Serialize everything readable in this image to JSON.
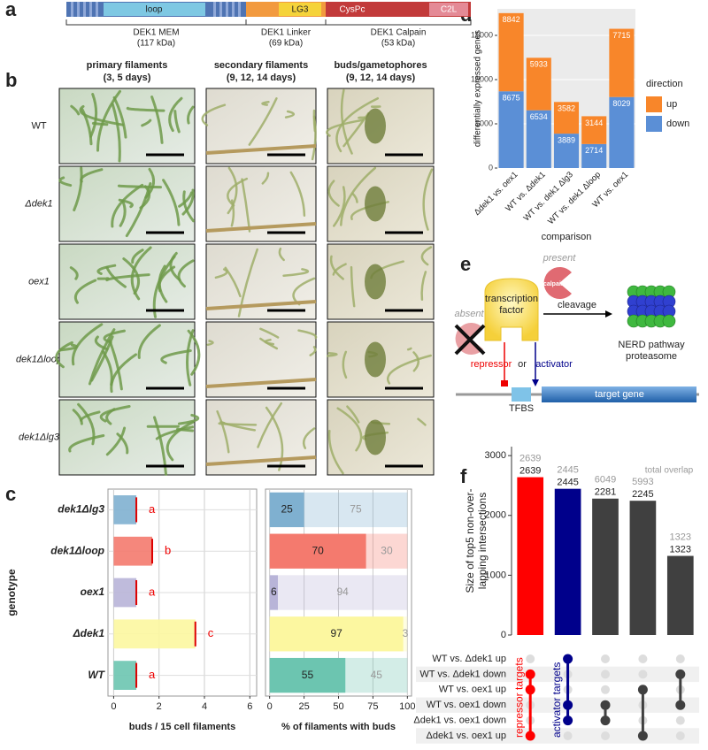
{
  "panel_labels": [
    "a",
    "b",
    "c",
    "d",
    "e",
    "f"
  ],
  "protein": {
    "domains": [
      "loop",
      "LG3",
      "CysPc",
      "C2L"
    ],
    "regions": [
      {
        "name": "DEK1 MEM",
        "mass": "(117 kDa)"
      },
      {
        "name": "DEK1 Linker",
        "mass": "(69 kDa)"
      },
      {
        "name": "DEK1 Calpain",
        "mass": "(53 kDa)"
      }
    ]
  },
  "micrographs": {
    "columns": [
      {
        "title": "primary filaments",
        "time": "(3, 5 days)"
      },
      {
        "title": "secondary filaments",
        "time": "(9, 12, 14 days)"
      },
      {
        "title": "buds/gametophores",
        "time": "(9, 12, 14 days)"
      }
    ],
    "rows": [
      "WT",
      "Δdek1",
      "oex1",
      "dek1Δloop",
      "dek1Δlg3"
    ]
  },
  "diagram": {
    "present": "present",
    "calpain": "calpain",
    "factor": [
      "transcription",
      "factor"
    ],
    "cleavage": "cleavage",
    "proteasome": [
      "NERD pathway",
      "proteasome"
    ],
    "absent": "absent",
    "repressor": "repressor",
    "or": "or",
    "activator": "activator",
    "tfbs": "TFBS",
    "gene": "target gene"
  },
  "chart_data": [
    {
      "type": "stacked_bar",
      "categories": [
        "Δdek1 vs. oex1",
        "WT vs. Δdek1",
        "WT vs. dek1 Δlg3",
        "WT vs. dek1 Δloop",
        "WT vs. oex1"
      ],
      "series": [
        {
          "name": "down",
          "color": "#5b8fd6",
          "values": [
            8675,
            6534,
            3889,
            2714,
            8029
          ]
        },
        {
          "name": "up",
          "color": "#f8862a",
          "values": [
            8842,
            5933,
            3582,
            3144,
            7715
          ]
        }
      ],
      "ylim": [
        0,
        18000
      ],
      "yticks": [
        0,
        5000,
        10000,
        15000
      ],
      "grid": true,
      "ylabel": "differentially expressed genes",
      "xlabel": "comparison",
      "legend_title": "direction"
    },
    {
      "type": "dot",
      "categories": [
        "dek1Δlg3",
        "dek1Δloop",
        "oex1",
        "Δdek1",
        "WT"
      ],
      "values": [
        1.0,
        1.7,
        1.0,
        3.6,
        1.0
      ],
      "colors": [
        "#7fb0d0",
        "#f47a6e",
        "#b8b4d8",
        "#fcf7a0",
        "#6cc5b0"
      ],
      "letters": [
        "a",
        "b",
        "a",
        "c",
        "a"
      ],
      "xlim": [
        -0.25,
        6.3
      ],
      "xticks": [
        0,
        2,
        4,
        6
      ],
      "grid": true,
      "xlabel": "buds / 15 cell filaments",
      "ylabel": "genotype"
    },
    {
      "type": "stacked_barh",
      "categories": [
        "dek1Δlg3",
        "dek1Δloop",
        "oex1",
        "Δdek1",
        "WT"
      ],
      "colors": [
        "#7fb0d0",
        "#f47a6e",
        "#b8b4d8",
        "#fcf7a0",
        "#6cc5b0"
      ],
      "series": [
        {
          "values": [
            25,
            70,
            6,
            97,
            55
          ]
        },
        {
          "values": [
            75,
            30,
            94,
            3,
            45
          ]
        }
      ],
      "xlim": [
        -3,
        103
      ],
      "xticks": [
        0,
        25,
        50,
        75,
        100
      ],
      "grid": true,
      "xlabel": "% of filaments with buds"
    },
    {
      "type": "upset",
      "values": [
        2639,
        2445,
        2281,
        2245,
        1323
      ],
      "total_overlap": [
        2639,
        2445,
        6049,
        5993,
        1323
      ],
      "colors": [
        "#ff0000",
        "#00008b",
        "#404040",
        "#404040",
        "#404040"
      ],
      "ylim": [
        0,
        3150
      ],
      "yticks": [
        0,
        1000,
        2000,
        3000
      ],
      "grid": true,
      "ylabel": [
        "Size of top5 non-over-",
        "lapping intersections"
      ],
      "annotation": "total overlap",
      "sets": [
        "WT vs. Δdek1 up",
        "WT vs. Δdek1 down",
        "WT vs. oex1 up",
        "WT vs. oex1 down",
        "Δdek1 vs. oex1 down",
        "Δdek1 vs. oex1 up"
      ],
      "memberships": [
        [
          1,
          2,
          5
        ],
        [
          0,
          3,
          4
        ],
        [
          3,
          4
        ],
        [
          2,
          5
        ],
        [
          1,
          3
        ]
      ],
      "group_labels": [
        "repressor targets",
        "activator targets"
      ]
    }
  ]
}
